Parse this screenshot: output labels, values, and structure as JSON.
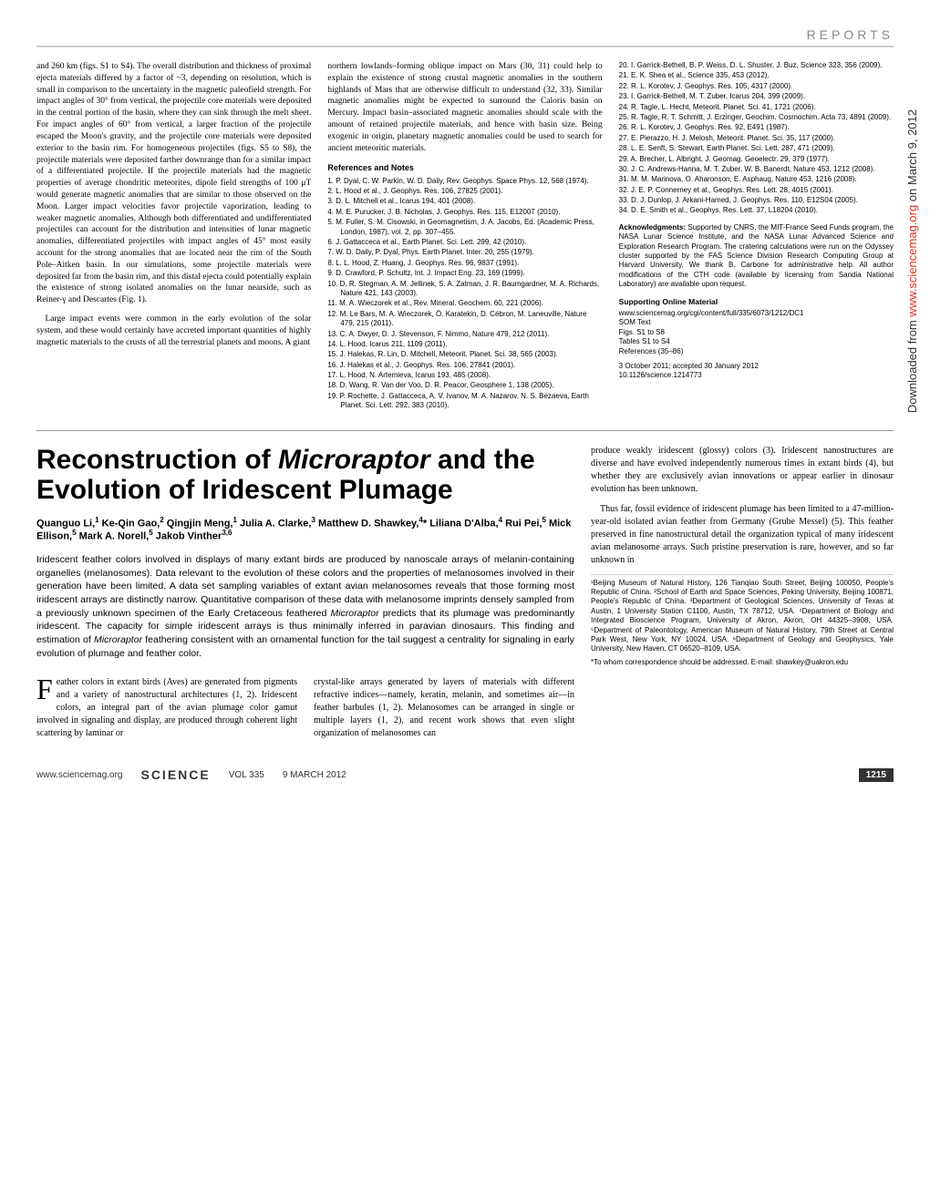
{
  "section_label": "REPORTS",
  "side_banner": {
    "prefix": "Downloaded from ",
    "link": "www.sciencemag.org",
    "suffix": " on March 9, 2012"
  },
  "top": {
    "col1_p1": "and 260 km (figs. S1 to S4). The overall distribution and thickness of proximal ejecta materials differed by a factor of ~3, depending on resolution, which is small in comparison to the uncertainty in the magnetic paleofield strength. For impact angles of 30° from vertical, the projectile core materials were deposited in the central portion of the basin, where they can sink through the melt sheet. For impact angles of 60° from vertical, a larger fraction of the projectile escaped the Moon's gravity, and the projectile core materials were deposited exterior to the basin rim. For homogeneous projectiles (figs. S5 to S8), the projectile materials were deposited farther downrange than for a similar impact of a differentiated projectile. If the projectile materials had the magnetic properties of average chondritic meteorites, dipole field strengths of 100 μT would generate magnetic anomalies that are similar to those observed on the Moon. Larger impact velocities favor projectile vaporization, leading to weaker magnetic anomalies. Although both differentiated and undifferentiated projectiles can account for the distribution and intensities of lunar magnetic anomalies, differentiated projectiles with impact angles of 45° most easily account for the strong anomalies that are located near the rim of the South Pole–Aitken basin. In our simulations, some projectile materials were deposited far from the basin rim, and this distal ejecta could potentially explain the existence of strong isolated anomalies on the lunar nearside, such as Reiner-γ and Descartes (Fig. 1).",
    "col1_p2": "Large impact events were common in the early evolution of the solar system, and these would certainly have accreted important quantities of highly magnetic materials to the crusts of all the terrestrial planets and moons. A giant",
    "col2_p1": "northern lowlands–forming oblique impact on Mars (30, 31) could help to explain the existence of strong crustal magnetic anomalies in the southern highlands of Mars that are otherwise difficult to understand (32, 33). Similar magnetic anomalies might be expected to surround the Caloris basin on Mercury. Impact basin–associated magnetic anomalies should scale with the amount of retained projectile materials, and hence with basin size. Being exogenic in origin, planetary magnetic anomalies could be used to search for ancient meteoritic materials.",
    "refs_header": "References and Notes",
    "refs_col2": [
      "1. P. Dyal, C. W. Parkin, W. D. Daily, Rev. Geophys. Space Phys. 12, 568 (1974).",
      "2. L. Hood et al., J. Geophys. Res. 106, 27825 (2001).",
      "3. D. L. Mitchell et al., Icarus 194, 401 (2008).",
      "4. M. E. Purucker, J. B. Nicholas, J. Geophys. Res. 115, E12007 (2010).",
      "5. M. Fuller, S. M. Cisowski, in Geomagnetism, J. A. Jacobs, Ed. (Academic Press, London, 1987), vol. 2, pp. 307–455.",
      "6. J. Gattacceca et al., Earth Planet. Sci. Lett. 299, 42 (2010).",
      "7. W. D. Daily, P. Dyal, Phys. Earth Planet. Inter. 20, 255 (1979).",
      "8. L. L. Hood, Z. Huang, J. Geophys. Res. 96, 9837 (1991).",
      "9. D. Crawford, P. Schultz, Int. J. Impact Eng. 23, 169 (1999).",
      "10. D. R. Stegman, A. M. Jellinek, S. A. Zatman, J. R. Baumgardner, M. A. Richards, Nature 421, 143 (2003).",
      "11. M. A. Wieczorek et al., Rev. Mineral. Geochem. 60, 221 (2006).",
      "12. M. Le Bars, M. A. Wieczorek, Ö. Karatekin, D. Cébron, M. Laneuville, Nature 479, 215 (2011).",
      "13. C. A. Dwyer, D. J. Stevenson, F. Nimmo, Nature 479, 212 (2011).",
      "14. L. Hood, Icarus 211, 1109 (2011).",
      "15. J. Halekas, R. Lin, D. Mitchell, Meteorit. Planet. Sci. 38, 565 (2003).",
      "16. J. Halekas et al., J. Geophys. Res. 106, 27841 (2001).",
      "17. L. Hood, N. Artemieva, Icarus 193, 485 (2008).",
      "18. D. Wang, R. Van der Voo, D. R. Peacor, Geosphere 1, 138 (2005).",
      "19. P. Rochette, J. Gattacceca, A. V. Ivanov, M. A. Nazarov, N. S. Bezaeva, Earth Planet. Sci. Lett. 292, 383 (2010)."
    ],
    "refs_col3": [
      "20. I. Garrick-Bethell, B. P. Weiss, D. L. Shuster, J. Buz, Science 323, 356 (2009).",
      "21. E. K. Shea et al., Science 335, 453 (2012).",
      "22. R. L. Korotev, J. Geophys. Res. 105, 4317 (2000).",
      "23. I. Garrick-Bethell, M. T. Zuber, Icarus 204, 399 (2009).",
      "24. R. Tagle, L. Hecht, Meteorit. Planet. Sci. 41, 1721 (2006).",
      "25. R. Tagle, R. T. Schmitt, J. Erzinger, Geochim. Cosmochim. Acta 73, 4891 (2009).",
      "26. R. L. Korotev, J. Geophys. Res. 92, E491 (1987).",
      "27. E. Pierazzo, H. J. Melosh, Meteorit. Planet. Sci. 35, 117 (2000).",
      "28. L. E. Senft, S. Stewart, Earth Planet. Sci. Lett. 287, 471 (2009).",
      "29. A. Brecher, L. Albright, J. Geomag. Geoelectr. 29, 379 (1977).",
      "30. J. C. Andrews-Hanna, M. T. Zuber, W. B. Banerdt, Nature 453, 1212 (2008).",
      "31. M. M. Marinova, O. Aharonson, E. Asphaug, Nature 453, 1216 (2008).",
      "32. J. E. P. Connerney et al., Geophys. Res. Lett. 28, 4015 (2001).",
      "33. D. J. Dunlop, J. Arkani-Hamed, J. Geophys. Res. 110, E12S04 (2005).",
      "34. D. E. Smith et al., Geophys. Res. Lett. 37, L18204 (2010)."
    ],
    "acknowledgments_label": "Acknowledgments:",
    "acknowledgments": " Supported by CNRS, the MIT-France Seed Funds program, the NASA Lunar Science Institute, and the NASA Lunar Advanced Science and Exploration Research Program. The cratering calculations were run on the Odyssey cluster supported by the FAS Science Division Research Computing Group at Harvard University. We thank B. Carbone for administrative help. All author modifications of the CTH code (available by licensing from Sandia National Laboratory) are available upon request.",
    "supporting_header": "Supporting Online Material",
    "supporting_items": [
      "www.sciencemag.org/cgi/content/full/335/6073/1212/DC1",
      "SOM Text",
      "Figs. S1 to S8",
      "Tables S1 to S4",
      "References (35–86)"
    ],
    "submission": "3 October 2011; accepted 30 January 2012",
    "doi": "10.1126/science.1214773"
  },
  "article": {
    "title_pre": "Reconstruction of ",
    "title_em": "Microraptor",
    "title_post": " and the Evolution of Iridescent Plumage",
    "authors_html": "Quanguo Li,<sup>1</sup> Ke-Qin Gao,<sup>2</sup> Qingjin Meng,<sup>1</sup> Julia A. Clarke,<sup>3</sup> Matthew D. Shawkey,<sup>4</sup>* Liliana D'Alba,<sup>4</sup> Rui Pei,<sup>5</sup> Mick Ellison,<sup>5</sup> Mark A. Norell,<sup>5</sup> Jakob Vinther<sup>3,6</sup>",
    "abstract": "Iridescent feather colors involved in displays of many extant birds are produced by nanoscale arrays of melanin-containing organelles (melanosomes). Data relevant to the evolution of these colors and the properties of melanosomes involved in their generation have been limited. A data set sampling variables of extant avian melanosomes reveals that those forming most iridescent arrays are distinctly narrow. Quantitative comparison of these data with melanosome imprints densely sampled from a previously unknown specimen of the Early Cretaceous feathered Microraptor predicts that its plumage was predominantly iridescent. The capacity for simple iridescent arrays is thus minimally inferred in paravian dinosaurs. This finding and estimation of Microraptor feathering consistent with an ornamental function for the tail suggest a centrality for signaling in early evolution of plumage and feather color.",
    "body_left": "Feather colors in extant birds (Aves) are generated from pigments and a variety of nanostructural architectures (1, 2). Iridescent colors, an integral part of the avian plumage color gamut involved in signaling and display, are produced through coherent light scattering by laminar or",
    "body_mid": "crystal-like arrays generated by layers of materials with different refractive indices—namely, keratin, melanin, and sometimes air—in feather barbules (1, 2). Melanosomes can be arranged in single or multiple layers (1, 2), and recent work shows that even slight organization of melanosomes can",
    "right_p1": "produce weakly iridescent (glossy) colors (3). Iridescent nanostructures are diverse and have evolved independently numerous times in extant birds (4), but whether they are exclusively avian innovations or appear earlier in dinosaur evolution has been unknown.",
    "right_p2": "Thus far, fossil evidence of iridescent plumage has been limited to a 47-million-year-old isolated avian feather from Germany (Grube Messel) (5). This feather preserved in fine nanostructural detail the organization typical of many iridescent avian melanosome arrays. Such pristine preservation is rare, however, and so far unknown in",
    "affiliations": "¹Beijing Museum of Natural History, 126 Tianqiao South Street, Beijing 100050, People's Republic of China. ²School of Earth and Space Sciences, Peking University, Beijing 100871, People's Republic of China. ³Department of Geological Sciences, University of Texas at Austin, 1 University Station C1100, Austin, TX 78712, USA. ⁴Department of Biology and Integrated Bioscience Program, University of Akron, Akron, OH 44325–3908, USA. ⁵Department of Paleontology, American Museum of Natural History, 79th Street at Central Park West, New York, NY 10024, USA. ⁶Department of Geology and Geophysics, Yale University, New Haven, CT 06520–8109, USA.",
    "corresponding": "*To whom correspondence should be addressed. E-mail: shawkey@uakron.edu"
  },
  "footer": {
    "url": "www.sciencemag.org",
    "journal": "SCIENCE",
    "vol": "VOL 335",
    "date": "9 MARCH 2012",
    "page": "1215"
  }
}
